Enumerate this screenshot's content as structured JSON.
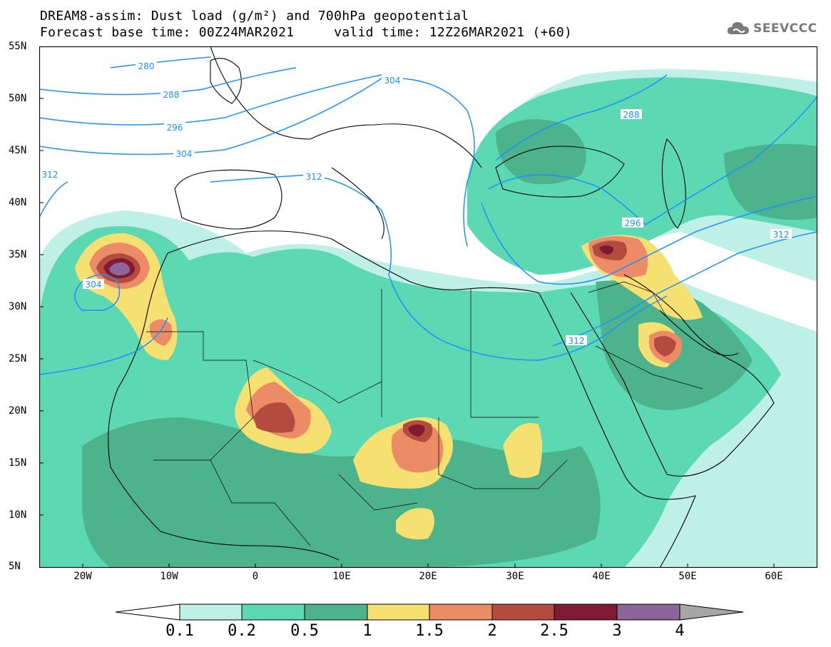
{
  "header": {
    "title_line1": "DREAM8-assim: Dust load (g/m²) and 700hPa geopotential",
    "title_line2": "Forecast base time: 00Z24MAR2021     valid time: 12Z26MAR2021 (+60)"
  },
  "logo": {
    "text": "SEEVCCC",
    "icon": "cloud-icon"
  },
  "axes": {
    "lat_labels": [
      "55N",
      "50N",
      "45N",
      "40N",
      "35N",
      "30N",
      "25N",
      "20N",
      "15N",
      "10N",
      "5N"
    ],
    "lon_labels": [
      "20W",
      "10W",
      "0",
      "10E",
      "20E",
      "30E",
      "40E",
      "50E",
      "60E"
    ]
  },
  "contours": {
    "labels": [
      "280",
      "288",
      "296",
      "304",
      "312",
      "288",
      "296",
      "304",
      "312",
      "304",
      "312",
      "312"
    ]
  },
  "colorbar": {
    "labels": [
      "0.1",
      "0.2",
      "0.5",
      "1",
      "1.5",
      "2",
      "2.5",
      "3",
      "4"
    ],
    "colors": [
      "#ffffff",
      "#bff0e6",
      "#5cd9b3",
      "#4db38c",
      "#f5e071",
      "#eb8c66",
      "#b34c3f",
      "#801a33",
      "#8c6699",
      "#a6a6a6"
    ]
  },
  "chart_data": {
    "type": "heatmap",
    "title": "DREAM8-assim: Dust load (g/m²) and 700hPa geopotential",
    "variable": "Dust load (g/m²)",
    "overlay": "700hPa geopotential (dam)",
    "lon_range": [
      -25,
      65
    ],
    "lat_range": [
      5,
      55
    ],
    "levels": [
      0.1,
      0.2,
      0.5,
      1,
      1.5,
      2,
      2.5,
      3,
      4
    ],
    "geopotential_contours": [
      280,
      288,
      296,
      304,
      312
    ],
    "dust_maxima": [
      {
        "lon": -16,
        "lat": 33.5,
        "value": 4
      },
      {
        "lon": 18,
        "lat": 18,
        "value": 3
      },
      {
        "lon": 40,
        "lat": 35.5,
        "value": 3
      },
      {
        "lon": 3,
        "lat": 18.5,
        "value": 2.5
      },
      {
        "lon": 47,
        "lat": 26.5,
        "value": 2.5
      },
      {
        "lon": -11,
        "lat": 27,
        "value": 2
      }
    ]
  }
}
